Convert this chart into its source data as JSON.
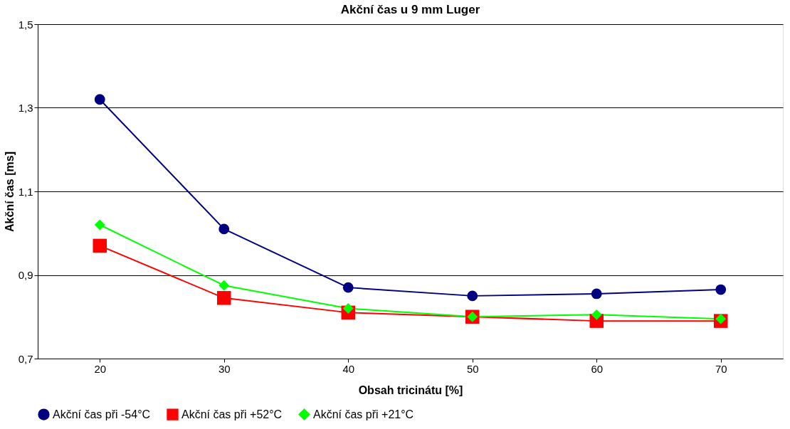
{
  "chart_data": {
    "type": "line",
    "title": "Akční čas u 9 mm Luger",
    "xlabel": "Obsah tricinátu [%]",
    "ylabel": "Akční čas [ms]",
    "categories": [
      "20",
      "30",
      "40",
      "50",
      "60",
      "70"
    ],
    "ylim": [
      0.7,
      1.5
    ],
    "yticks": [
      {
        "value": 0.7,
        "label": "0,7"
      },
      {
        "value": 0.9,
        "label": "0,9"
      },
      {
        "value": 1.1,
        "label": "1,1"
      },
      {
        "value": 1.3,
        "label": "1,3"
      },
      {
        "value": 1.5,
        "label": "1,5"
      }
    ],
    "grid": "y",
    "legend": "bottom",
    "line_style": "solid",
    "series": [
      {
        "name": "Akční čas při -54°C",
        "color": "#000080",
        "marker": "circle",
        "values": [
          1.32,
          1.01,
          0.87,
          0.85,
          0.855,
          0.865
        ]
      },
      {
        "name": "Akční čas při +52°C",
        "color": "#ff0000",
        "marker": "square",
        "values": [
          0.97,
          0.845,
          0.81,
          0.8,
          0.79,
          0.79
        ]
      },
      {
        "name": "Akční čas při +21°C",
        "color": "#00ff00",
        "marker": "diamond",
        "values": [
          1.02,
          0.875,
          0.82,
          0.8,
          0.805,
          0.795
        ]
      }
    ]
  }
}
